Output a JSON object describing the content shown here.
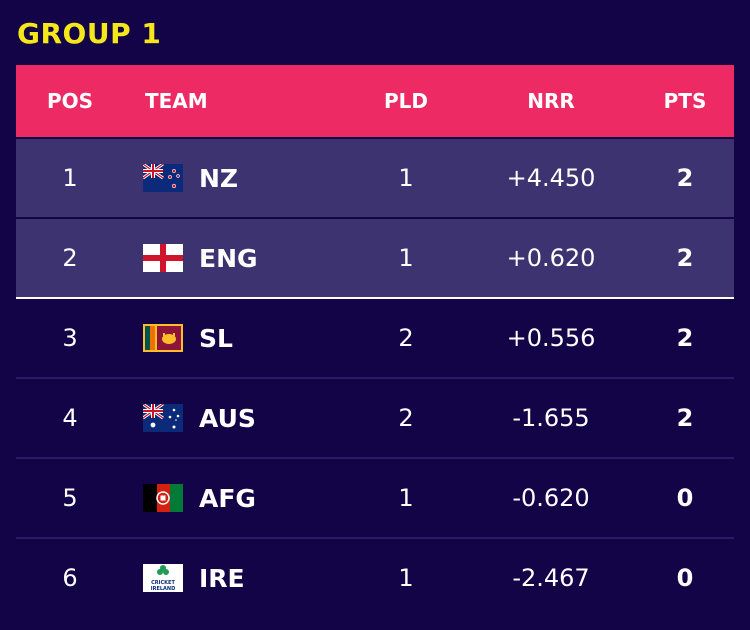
{
  "title": "GROUP 1",
  "headers": {
    "pos": "POS",
    "team": "TEAM",
    "pld": "PLD",
    "nrr": "NRR",
    "pts": "PTS"
  },
  "rows": [
    {
      "pos": "1",
      "team": "NZ",
      "flag": "new-zealand-flag",
      "pld": "1",
      "nrr": "+4.450",
      "pts": "2"
    },
    {
      "pos": "2",
      "team": "ENG",
      "flag": "england-flag",
      "pld": "1",
      "nrr": "+0.620",
      "pts": "2"
    },
    {
      "pos": "3",
      "team": "SL",
      "flag": "sri-lanka-flag",
      "pld": "2",
      "nrr": "+0.556",
      "pts": "2"
    },
    {
      "pos": "4",
      "team": "AUS",
      "flag": "australia-flag",
      "pld": "2",
      "nrr": "-1.655",
      "pts": "2"
    },
    {
      "pos": "5",
      "team": "AFG",
      "flag": "afghanistan-flag",
      "pld": "1",
      "nrr": "-0.620",
      "pts": "0"
    },
    {
      "pos": "6",
      "team": "IRE",
      "flag": "cricket-ireland-logo",
      "pld": "1",
      "nrr": "-2.467",
      "pts": "0"
    }
  ],
  "ireland_logo_text": "CRICKET IRELAND",
  "colors": {
    "background": "#120447",
    "header": "#ee2a64",
    "title": "#f5e719",
    "qualified_row": "#3d3370"
  }
}
